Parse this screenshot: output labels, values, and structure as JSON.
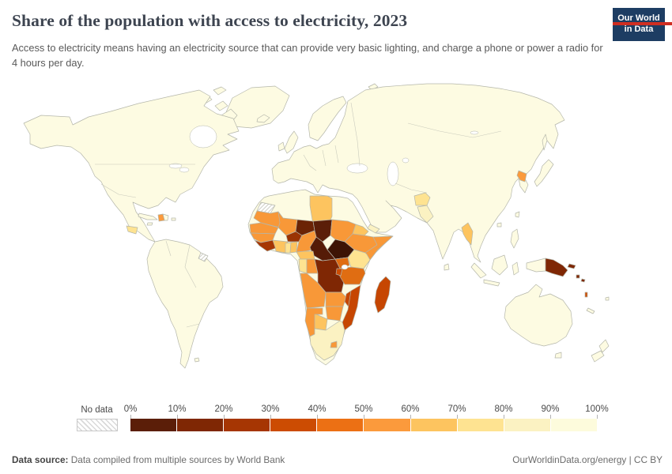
{
  "header": {
    "title": "Share of the population with access to electricity, 2023",
    "subtitle": "Access to electricity means having an electricity source that can provide very basic lighting, and charge a phone or power a radio for 4 hours per day.",
    "logo": {
      "line1": "Our World",
      "line2": "in Data",
      "bg_color": "#1d3d63",
      "accent_color": "#cf2e22"
    }
  },
  "legend": {
    "no_data_label": "No data",
    "tick_labels": [
      "0%",
      "10%",
      "20%",
      "30%",
      "40%",
      "50%",
      "60%",
      "70%",
      "80%",
      "90%",
      "100%"
    ],
    "bins": [
      {
        "range": "0-10%",
        "color": "#5B1E08"
      },
      {
        "range": "10-20%",
        "color": "#7F2704"
      },
      {
        "range": "20-30%",
        "color": "#A63603"
      },
      {
        "range": "30-40%",
        "color": "#CC4C02"
      },
      {
        "range": "40-50%",
        "color": "#EC7014"
      },
      {
        "range": "50-60%",
        "color": "#FB9A3C"
      },
      {
        "range": "60-70%",
        "color": "#FDC45F"
      },
      {
        "range": "70-80%",
        "color": "#FEE391"
      },
      {
        "range": "80-90%",
        "color": "#FBF2C2"
      },
      {
        "range": "90-100%",
        "color": "#FDFBDC"
      }
    ]
  },
  "footer": {
    "source_label": "Data source:",
    "source_text": " Data compiled from multiple sources by World Bank",
    "right_text": "OurWorldinData.org/energy | CC BY"
  },
  "map": {
    "ocean_color": "#ffffff",
    "default_fill": "#FDFBE2",
    "border_color": "#b4b6aa",
    "regions": {
      "haiti": "#FB9A3C",
      "honduras-nicaragua": "#FEE391",
      "french-guiana": "no-data",
      "western-sahara": "no-data",
      "libya": "#FDC45F",
      "mauritania": "#F89838",
      "senegal": "#F89838",
      "guinea": "#F89838",
      "sierra-leone-liberia": "#A63603",
      "mali": "#F89838",
      "burkina-faso": "#9A3404",
      "cote-divoire": "#FDC45F",
      "ghana": "#FEE391",
      "togo-benin": "#FDC45F",
      "niger": "#6B2305",
      "nigeria": "#F89838",
      "chad": "#5B1E08",
      "sudan": "#F89838",
      "eritrea-djibouti": "#FDC45F",
      "ethiopia": "#F89838",
      "somalia": "#F89838",
      "south-sudan": "#3D1405",
      "central-african-republic": "#551B07",
      "cameroon": "#FDC45F",
      "gabon": "#FEE391",
      "congo": "#F89838",
      "drc": "#7F2704",
      "uganda": "#E06D12",
      "kenya": "#FEE391",
      "tanzania": "#E06D12",
      "rwanda-burundi": "#CC4C02",
      "angola": "#F89838",
      "zambia": "#F89838",
      "malawi": "#C64602",
      "mozambique": "#C64602",
      "zimbabwe": "#F89838",
      "botswana": "#FDC45F",
      "namibia": "#F89838",
      "south-africa": "#FBF2C2",
      "lesotho": "#F89838",
      "madagascar": "#C64602",
      "north-korea": "#FB9A3C",
      "myanmar": "#FDC45F",
      "afghanistan": "#FEE391",
      "pakistan": "#FBF2C2",
      "yemen": "#FBF2C2",
      "papua-new-guinea": "#7F2704",
      "new-britain": "#7F2704",
      "solomon-1": "#7F2704",
      "solomon-2": "#7F2704",
      "vanuatu": "#CC4C02"
    }
  },
  "chart_data": {
    "type": "heatmap",
    "subtype": "choropleth-world-map",
    "title": "Share of the population with access to electricity, 2023",
    "unit": "%",
    "legend_position": "bottom",
    "bins": [
      "0-10%",
      "10-20%",
      "20-30%",
      "30-40%",
      "40-50%",
      "50-60%",
      "60-70%",
      "70-80%",
      "80-90%",
      "90-100%"
    ],
    "no_data_regions": [
      "Western Sahara",
      "French Guiana"
    ],
    "regions": [
      {
        "name": "South Sudan",
        "bin": "0-10%"
      },
      {
        "name": "Chad",
        "bin": "0-10%"
      },
      {
        "name": "Central African Republic",
        "bin": "0-10%"
      },
      {
        "name": "Niger",
        "bin": "10-20%"
      },
      {
        "name": "DR Congo",
        "bin": "10-20%"
      },
      {
        "name": "Papua New Guinea",
        "bin": "20-30%"
      },
      {
        "name": "Burkina Faso",
        "bin": "20-30%"
      },
      {
        "name": "Sierra Leone",
        "bin": "20-30%"
      },
      {
        "name": "Liberia",
        "bin": "30-40%"
      },
      {
        "name": "Madagascar",
        "bin": "30-40%"
      },
      {
        "name": "Mozambique",
        "bin": "30-40%"
      },
      {
        "name": "Malawi",
        "bin": "30-40%"
      },
      {
        "name": "Burundi",
        "bin": "30-40%"
      },
      {
        "name": "Tanzania",
        "bin": "40-50%"
      },
      {
        "name": "Uganda",
        "bin": "40-50%"
      },
      {
        "name": "Angola",
        "bin": "50-60%"
      },
      {
        "name": "Zambia",
        "bin": "50-60%"
      },
      {
        "name": "Zimbabwe",
        "bin": "50-60%"
      },
      {
        "name": "Namibia",
        "bin": "50-60%"
      },
      {
        "name": "Nigeria",
        "bin": "50-60%"
      },
      {
        "name": "Mali",
        "bin": "50-60%"
      },
      {
        "name": "Mauritania",
        "bin": "50-60%"
      },
      {
        "name": "Senegal",
        "bin": "50-60%"
      },
      {
        "name": "Guinea",
        "bin": "50-60%"
      },
      {
        "name": "Sudan",
        "bin": "50-60%"
      },
      {
        "name": "Ethiopia",
        "bin": "50-60%"
      },
      {
        "name": "Somalia",
        "bin": "50-60%"
      },
      {
        "name": "Congo",
        "bin": "50-60%"
      },
      {
        "name": "Haiti",
        "bin": "50-60%"
      },
      {
        "name": "North Korea",
        "bin": "50-60%"
      },
      {
        "name": "Lesotho",
        "bin": "50-60%"
      },
      {
        "name": "Libya",
        "bin": "60-70%"
      },
      {
        "name": "Botswana",
        "bin": "60-70%"
      },
      {
        "name": "Cameroon",
        "bin": "60-70%"
      },
      {
        "name": "Cote d'Ivoire",
        "bin": "60-70%"
      },
      {
        "name": "Benin",
        "bin": "60-70%"
      },
      {
        "name": "Eritrea",
        "bin": "60-70%"
      },
      {
        "name": "Ghana",
        "bin": "70-80%"
      },
      {
        "name": "Kenya",
        "bin": "70-80%"
      },
      {
        "name": "Gabon",
        "bin": "70-80%"
      },
      {
        "name": "Myanmar",
        "bin": "70-80%"
      },
      {
        "name": "Afghanistan",
        "bin": "70-80%"
      },
      {
        "name": "Honduras",
        "bin": "70-80%"
      },
      {
        "name": "South Africa",
        "bin": "80-90%"
      },
      {
        "name": "Yemen",
        "bin": "80-90%"
      },
      {
        "name": "Pakistan",
        "bin": "80-90%"
      },
      {
        "name": "Europe, Americas, rest of Asia and Oceania",
        "bin": "90-100%"
      }
    ]
  }
}
